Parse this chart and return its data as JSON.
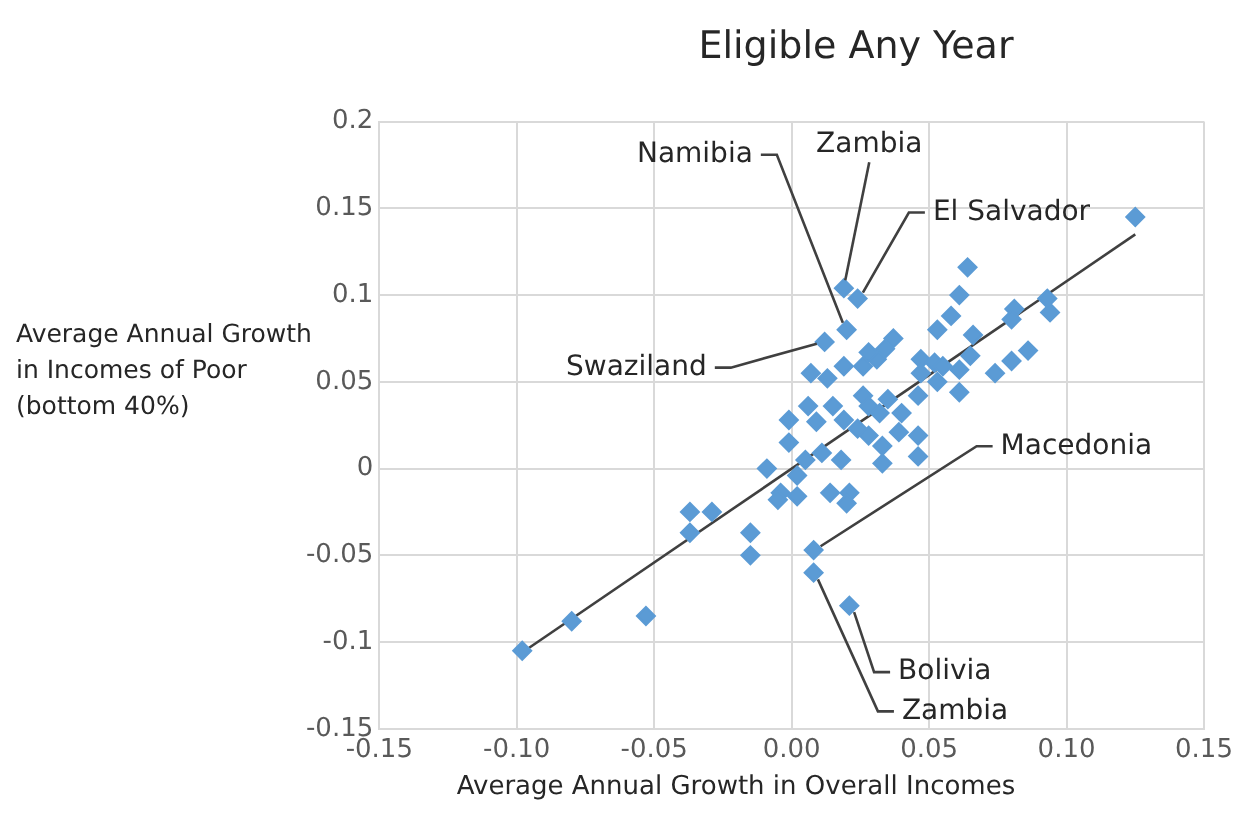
{
  "chart_data": {
    "type": "scatter",
    "title": "Eligible Any Year",
    "xlabel": "Average Annual Growth in Overall Incomes",
    "ylabel": "Average Annual Growth in Incomes of Poor (bottom 40%)",
    "series": [
      {
        "type": "scatter",
        "marker": "diamond",
        "color": "#5b9bd5",
        "x": [
          0.125,
          0.064,
          0.019,
          0.024,
          0.02,
          0.012,
          0.061,
          0.058,
          0.093,
          0.094,
          0.081,
          0.08,
          0.086,
          0.08,
          0.074,
          0.066,
          0.065,
          0.061,
          0.061,
          0.053,
          0.047,
          0.052,
          0.055,
          0.053,
          0.047,
          0.046,
          0.037,
          0.034,
          0.031,
          0.028,
          0.026,
          0.019,
          0.013,
          0.007,
          0.015,
          0.006,
          -0.001,
          0.009,
          0.019,
          0.026,
          0.028,
          0.032,
          0.035,
          0.04,
          0.039,
          0.046,
          0.046,
          0.033,
          0.033,
          0.028,
          0.024,
          0.018,
          0.011,
          0.005,
          -0.001,
          -0.009,
          0.002,
          -0.004,
          0.002,
          0.014,
          0.021,
          0.02,
          -0.005,
          -0.015,
          -0.015,
          0.008,
          0.008,
          0.021,
          -0.098,
          -0.08,
          -0.053,
          -0.037,
          -0.029,
          -0.037
        ],
        "values": [
          0.145,
          0.116,
          0.104,
          0.098,
          0.08,
          0.073,
          0.1,
          0.088,
          0.098,
          0.09,
          0.092,
          0.086,
          0.068,
          0.062,
          0.055,
          0.077,
          0.065,
          0.057,
          0.044,
          0.08,
          0.063,
          0.061,
          0.059,
          0.05,
          0.055,
          0.042,
          0.075,
          0.069,
          0.063,
          0.067,
          0.059,
          0.059,
          0.052,
          0.055,
          0.036,
          0.036,
          0.028,
          0.027,
          0.028,
          0.042,
          0.036,
          0.032,
          0.04,
          0.032,
          0.021,
          0.019,
          0.007,
          0.013,
          0.003,
          0.019,
          0.023,
          0.005,
          0.009,
          0.005,
          0.015,
          0.0,
          -0.004,
          -0.014,
          -0.016,
          -0.014,
          -0.014,
          -0.02,
          -0.018,
          -0.05,
          -0.037,
          -0.047,
          -0.06,
          -0.079,
          -0.105,
          -0.088,
          -0.085,
          -0.025,
          -0.025,
          -0.037
        ]
      },
      {
        "type": "line",
        "color": "#404040",
        "x": [
          -0.098,
          0.125
        ],
        "values": [
          -0.106,
          0.135
        ]
      }
    ],
    "xlim": [
      -0.15,
      0.15
    ],
    "xticks": [
      -0.15,
      {
        "value": -0.1,
        "label": "-0.10"
      },
      -0.05,
      {
        "value": 0,
        "label": "0.00"
      },
      0.05,
      {
        "value": 0.1,
        "label": "0.10"
      },
      0.15
    ],
    "ylim": [
      -0.15,
      0.2
    ],
    "yticks": [
      -0.15,
      -0.1,
      -0.05,
      0,
      0.05,
      0.1,
      0.15,
      0.2
    ],
    "annotations": [
      {
        "text": "Namibia",
        "x": 0.02,
        "y": 0.08
      },
      {
        "text": "Zambia",
        "x": 0.019,
        "y": 0.104
      },
      {
        "text": "El Salvador",
        "x": 0.024,
        "y": 0.098
      },
      {
        "text": "Swaziland",
        "x": 0.012,
        "y": 0.073
      },
      {
        "text": "Macedonia",
        "x": 0.008,
        "y": -0.047
      },
      {
        "text": "Bolivia",
        "x": 0.021,
        "y": -0.079
      },
      {
        "text": "Zambia",
        "x": 0.008,
        "y": -0.06
      }
    ],
    "grid": true,
    "legend": false
  }
}
